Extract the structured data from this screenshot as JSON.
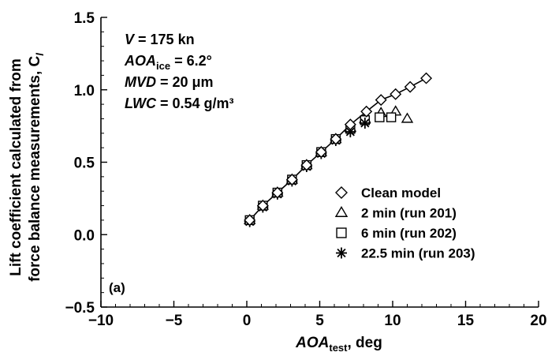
{
  "chart_data": {
    "type": "scatter",
    "xlabel": {
      "main": "AOA",
      "sub": "test",
      "rest": ", deg"
    },
    "ylabel": {
      "line1": "Lift coefficient calculated from",
      "line2": "force balance measurements, C",
      "sub": "l"
    },
    "xlim": [
      -10,
      20
    ],
    "ylim": [
      -0.5,
      1.5
    ],
    "x_ticks": [
      -10,
      -5,
      0,
      5,
      10,
      15,
      20
    ],
    "x_tick_labels": [
      "−10",
      "−5",
      "0",
      "5",
      "10",
      "15",
      "20"
    ],
    "y_ticks": [
      -0.5,
      0.0,
      0.5,
      1.0,
      1.5
    ],
    "y_tick_labels": [
      "−0.5",
      "0.0",
      "0.5",
      "1.0",
      "1.5"
    ],
    "grid": false,
    "panel_label": "(a)",
    "conditions": [
      {
        "var": "V",
        "sub": "",
        "text": " = 175 kn"
      },
      {
        "var": "AOA",
        "sub": "ice",
        "text": " = 6.2°"
      },
      {
        "var": "MVD",
        "sub": "",
        "text": " = 20 μm"
      },
      {
        "var": "LWC",
        "sub": "",
        "text": " = 0.54 g/m³"
      }
    ],
    "legend_position": "right-center",
    "series": [
      {
        "name": "Clean model",
        "marker": "diamond",
        "line": true,
        "x": [
          0.2,
          1.1,
          2.1,
          3.1,
          4.1,
          5.1,
          6.1,
          7.1,
          8.2,
          9.2,
          10.2,
          11.2,
          12.3
        ],
        "y": [
          0.1,
          0.2,
          0.29,
          0.38,
          0.48,
          0.57,
          0.66,
          0.76,
          0.85,
          0.93,
          0.97,
          1.02,
          1.08
        ]
      },
      {
        "name": "2 min (run 201)",
        "marker": "triangle",
        "line": false,
        "x": [
          0.2,
          1.1,
          2.1,
          3.1,
          4.1,
          5.1,
          6.1,
          7.1,
          8.1,
          9.2,
          10.2,
          11.0
        ],
        "y": [
          0.1,
          0.2,
          0.29,
          0.38,
          0.48,
          0.57,
          0.66,
          0.74,
          0.8,
          0.84,
          0.85,
          0.8
        ]
      },
      {
        "name": "6 min (run 202)",
        "marker": "square",
        "line": false,
        "x": [
          0.2,
          1.1,
          2.1,
          3.1,
          4.1,
          5.1,
          6.1,
          7.1,
          8.1,
          9.1,
          9.9
        ],
        "y": [
          0.1,
          0.2,
          0.29,
          0.38,
          0.48,
          0.57,
          0.66,
          0.73,
          0.79,
          0.81,
          0.81
        ]
      },
      {
        "name": "22.5 min (run 203)",
        "marker": "asterisk",
        "line": false,
        "x": [
          0.2,
          1.1,
          2.1,
          3.1,
          4.1,
          5.1,
          6.1,
          7.1,
          8.1
        ],
        "y": [
          0.09,
          0.19,
          0.28,
          0.37,
          0.47,
          0.56,
          0.65,
          0.71,
          0.77
        ]
      }
    ]
  }
}
